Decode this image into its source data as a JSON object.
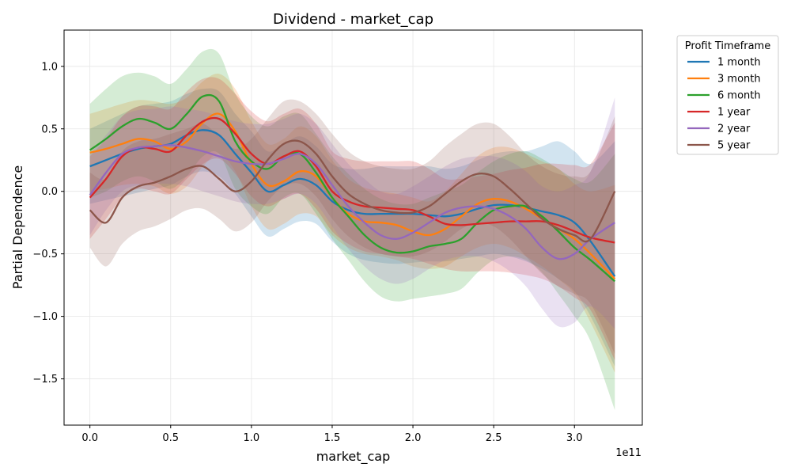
{
  "chart_data": {
    "type": "line",
    "title": "Dividend - market_cap",
    "xlabel": "market_cap",
    "ylabel": "Partial Dependence",
    "x_offset_label": "1e11",
    "xlim": [
      -0.16,
      3.42
    ],
    "ylim": [
      -1.87,
      1.29
    ],
    "x_ticks": [
      {
        "value": 0.0,
        "label": "0.0"
      },
      {
        "value": 0.5,
        "label": "0.5"
      },
      {
        "value": 1.0,
        "label": "1.0"
      },
      {
        "value": 1.5,
        "label": "1.5"
      },
      {
        "value": 2.0,
        "label": "2.0"
      },
      {
        "value": 2.5,
        "label": "2.5"
      },
      {
        "value": 3.0,
        "label": "3.0"
      }
    ],
    "y_ticks": [
      {
        "value": -1.5,
        "label": "−1.5"
      },
      {
        "value": -1.0,
        "label": "−1.0"
      },
      {
        "value": -0.5,
        "label": "−0.5"
      },
      {
        "value": 0.0,
        "label": "0.0"
      },
      {
        "value": 0.5,
        "label": "0.5"
      },
      {
        "value": 1.0,
        "label": "1.0"
      }
    ],
    "grid": true,
    "legend": {
      "title": "Profit Timeframe",
      "placement": "outside-top-right"
    },
    "x": [
      0.0,
      0.1,
      0.2,
      0.3,
      0.4,
      0.5,
      0.6,
      0.7,
      0.8,
      0.9,
      1.0,
      1.1,
      1.2,
      1.3,
      1.4,
      1.5,
      1.6,
      1.7,
      1.8,
      1.9,
      2.0,
      2.1,
      2.2,
      2.3,
      2.4,
      2.5,
      2.6,
      2.7,
      2.8,
      2.9,
      3.0,
      3.1,
      3.25
    ],
    "series": [
      {
        "name": "1 month",
        "color": "#1f77b4",
        "values": [
          0.2,
          0.25,
          0.3,
          0.34,
          0.36,
          0.38,
          0.45,
          0.49,
          0.45,
          0.3,
          0.15,
          0.0,
          0.05,
          0.1,
          0.05,
          -0.08,
          -0.15,
          -0.18,
          -0.18,
          -0.18,
          -0.18,
          -0.19,
          -0.2,
          -0.18,
          -0.14,
          -0.11,
          -0.11,
          -0.13,
          -0.16,
          -0.19,
          -0.25,
          -0.4,
          -0.68
        ],
        "lower": [
          -0.1,
          -0.07,
          -0.04,
          -0.01,
          0.02,
          0.05,
          0.12,
          0.16,
          0.12,
          -0.02,
          -0.2,
          -0.36,
          -0.3,
          -0.24,
          -0.26,
          -0.4,
          -0.5,
          -0.55,
          -0.57,
          -0.58,
          -0.57,
          -0.56,
          -0.56,
          -0.54,
          -0.52,
          -0.5,
          -0.52,
          -0.56,
          -0.62,
          -0.7,
          -0.8,
          -1.0,
          -1.4
        ],
        "upper": [
          0.5,
          0.56,
          0.62,
          0.68,
          0.7,
          0.72,
          0.78,
          0.82,
          0.8,
          0.62,
          0.48,
          0.32,
          0.38,
          0.44,
          0.36,
          0.22,
          0.18,
          0.18,
          0.2,
          0.2,
          0.2,
          0.2,
          0.18,
          0.2,
          0.25,
          0.3,
          0.32,
          0.32,
          0.36,
          0.4,
          0.32,
          0.22,
          0.4
        ]
      },
      {
        "name": "3 month",
        "color": "#ff7f0e",
        "values": [
          0.31,
          0.34,
          0.38,
          0.42,
          0.4,
          0.34,
          0.4,
          0.55,
          0.62,
          0.48,
          0.22,
          0.05,
          0.08,
          0.16,
          0.12,
          -0.05,
          -0.18,
          -0.24,
          -0.25,
          -0.27,
          -0.32,
          -0.35,
          -0.3,
          -0.2,
          -0.1,
          -0.06,
          -0.08,
          -0.14,
          -0.22,
          -0.3,
          -0.38,
          -0.5,
          -0.7
        ],
        "lower": [
          0.0,
          0.02,
          0.05,
          0.06,
          0.04,
          -0.02,
          0.04,
          0.2,
          0.3,
          0.16,
          -0.12,
          -0.3,
          -0.26,
          -0.18,
          -0.2,
          -0.35,
          -0.45,
          -0.5,
          -0.52,
          -0.55,
          -0.6,
          -0.62,
          -0.6,
          -0.52,
          -0.45,
          -0.42,
          -0.45,
          -0.52,
          -0.6,
          -0.7,
          -0.82,
          -1.05,
          -1.45
        ],
        "upper": [
          0.62,
          0.66,
          0.7,
          0.73,
          0.72,
          0.7,
          0.75,
          0.88,
          0.94,
          0.82,
          0.56,
          0.38,
          0.42,
          0.52,
          0.44,
          0.25,
          0.1,
          0.03,
          0.0,
          -0.02,
          -0.05,
          -0.08,
          0.0,
          0.14,
          0.28,
          0.35,
          0.35,
          0.3,
          0.24,
          0.18,
          0.06,
          0.0,
          0.05
        ]
      },
      {
        "name": "6 month",
        "color": "#2ca02c",
        "values": [
          0.33,
          0.42,
          0.52,
          0.58,
          0.55,
          0.5,
          0.62,
          0.76,
          0.72,
          0.4,
          0.24,
          0.18,
          0.28,
          0.3,
          0.15,
          -0.05,
          -0.2,
          -0.35,
          -0.45,
          -0.49,
          -0.48,
          -0.44,
          -0.42,
          -0.38,
          -0.25,
          -0.15,
          -0.12,
          -0.12,
          -0.2,
          -0.32,
          -0.45,
          -0.55,
          -0.72
        ],
        "lower": [
          -0.05,
          0.0,
          0.08,
          0.12,
          0.08,
          0.02,
          0.12,
          0.28,
          0.3,
          0.02,
          -0.12,
          -0.18,
          -0.05,
          -0.02,
          -0.18,
          -0.38,
          -0.55,
          -0.72,
          -0.84,
          -0.88,
          -0.86,
          -0.84,
          -0.82,
          -0.78,
          -0.65,
          -0.55,
          -0.52,
          -0.55,
          -0.65,
          -0.82,
          -1.0,
          -1.2,
          -1.75
        ],
        "upper": [
          0.7,
          0.82,
          0.92,
          0.95,
          0.92,
          0.86,
          0.98,
          1.12,
          1.1,
          0.78,
          0.6,
          0.52,
          0.6,
          0.62,
          0.46,
          0.28,
          0.14,
          0.02,
          -0.06,
          -0.1,
          -0.1,
          -0.05,
          0.0,
          0.05,
          0.15,
          0.24,
          0.3,
          0.32,
          0.26,
          0.18,
          0.1,
          0.08,
          0.3
        ]
      },
      {
        "name": "1 year",
        "color": "#d62728",
        "values": [
          -0.05,
          0.1,
          0.28,
          0.35,
          0.34,
          0.32,
          0.45,
          0.56,
          0.58,
          0.46,
          0.3,
          0.22,
          0.28,
          0.32,
          0.2,
          0.0,
          -0.08,
          -0.12,
          -0.13,
          -0.14,
          -0.15,
          -0.2,
          -0.26,
          -0.27,
          -0.26,
          -0.25,
          -0.24,
          -0.24,
          -0.24,
          -0.27,
          -0.32,
          -0.37,
          -0.41
        ],
        "lower": [
          -0.38,
          -0.22,
          -0.05,
          0.02,
          0.0,
          -0.02,
          0.1,
          0.22,
          0.26,
          0.14,
          -0.04,
          -0.12,
          -0.06,
          -0.02,
          -0.14,
          -0.32,
          -0.42,
          -0.48,
          -0.5,
          -0.52,
          -0.54,
          -0.58,
          -0.62,
          -0.64,
          -0.64,
          -0.64,
          -0.65,
          -0.67,
          -0.7,
          -0.76,
          -0.85,
          -0.95,
          -1.35
        ],
        "upper": [
          0.28,
          0.42,
          0.6,
          0.68,
          0.68,
          0.66,
          0.8,
          0.9,
          0.9,
          0.78,
          0.64,
          0.56,
          0.62,
          0.66,
          0.54,
          0.32,
          0.26,
          0.24,
          0.24,
          0.24,
          0.24,
          0.18,
          0.1,
          0.1,
          0.12,
          0.14,
          0.17,
          0.19,
          0.22,
          0.22,
          0.21,
          0.22,
          0.55
        ]
      },
      {
        "name": "2 year",
        "color": "#9467bd",
        "values": [
          -0.03,
          0.15,
          0.3,
          0.35,
          0.36,
          0.37,
          0.35,
          0.32,
          0.28,
          0.24,
          0.22,
          0.22,
          0.26,
          0.3,
          0.22,
          0.05,
          -0.12,
          -0.25,
          -0.35,
          -0.38,
          -0.33,
          -0.25,
          -0.17,
          -0.13,
          -0.12,
          -0.14,
          -0.2,
          -0.3,
          -0.45,
          -0.54,
          -0.5,
          -0.38,
          -0.25
        ],
        "lower": [
          -0.35,
          -0.15,
          0.0,
          0.05,
          0.06,
          0.06,
          0.04,
          0.0,
          -0.04,
          -0.08,
          -0.1,
          -0.1,
          -0.06,
          -0.02,
          -0.1,
          -0.28,
          -0.46,
          -0.6,
          -0.7,
          -0.74,
          -0.7,
          -0.62,
          -0.55,
          -0.52,
          -0.52,
          -0.56,
          -0.64,
          -0.76,
          -0.94,
          -1.08,
          -1.05,
          -0.92,
          -1.1
        ],
        "upper": [
          0.3,
          0.45,
          0.6,
          0.65,
          0.66,
          0.68,
          0.66,
          0.64,
          0.6,
          0.56,
          0.54,
          0.54,
          0.58,
          0.62,
          0.54,
          0.38,
          0.22,
          0.1,
          0.0,
          -0.02,
          0.04,
          0.12,
          0.2,
          0.26,
          0.28,
          0.28,
          0.24,
          0.16,
          0.04,
          0.0,
          0.05,
          0.16,
          0.75
        ]
      },
      {
        "name": "5 year",
        "color": "#8c564b",
        "values": [
          -0.15,
          -0.25,
          -0.05,
          0.04,
          0.07,
          0.12,
          0.18,
          0.2,
          0.1,
          0.0,
          0.08,
          0.25,
          0.38,
          0.4,
          0.3,
          0.12,
          -0.02,
          -0.1,
          -0.15,
          -0.17,
          -0.17,
          -0.12,
          -0.02,
          0.08,
          0.14,
          0.12,
          0.02,
          -0.1,
          -0.22,
          -0.3,
          -0.35,
          -0.38,
          0.0
        ],
        "lower": [
          -0.45,
          -0.6,
          -0.42,
          -0.32,
          -0.28,
          -0.22,
          -0.15,
          -0.14,
          -0.22,
          -0.32,
          -0.25,
          -0.08,
          0.04,
          0.06,
          -0.04,
          -0.22,
          -0.36,
          -0.45,
          -0.5,
          -0.52,
          -0.52,
          -0.48,
          -0.4,
          -0.3,
          -0.25,
          -0.28,
          -0.38,
          -0.52,
          -0.66,
          -0.76,
          -0.82,
          -0.9,
          -1.3
        ],
        "upper": [
          0.15,
          0.1,
          0.32,
          0.4,
          0.42,
          0.46,
          0.5,
          0.54,
          0.44,
          0.34,
          0.42,
          0.58,
          0.72,
          0.72,
          0.62,
          0.46,
          0.32,
          0.24,
          0.2,
          0.18,
          0.18,
          0.24,
          0.36,
          0.46,
          0.54,
          0.54,
          0.44,
          0.3,
          0.2,
          0.14,
          0.12,
          0.16,
          0.6
        ]
      }
    ]
  }
}
